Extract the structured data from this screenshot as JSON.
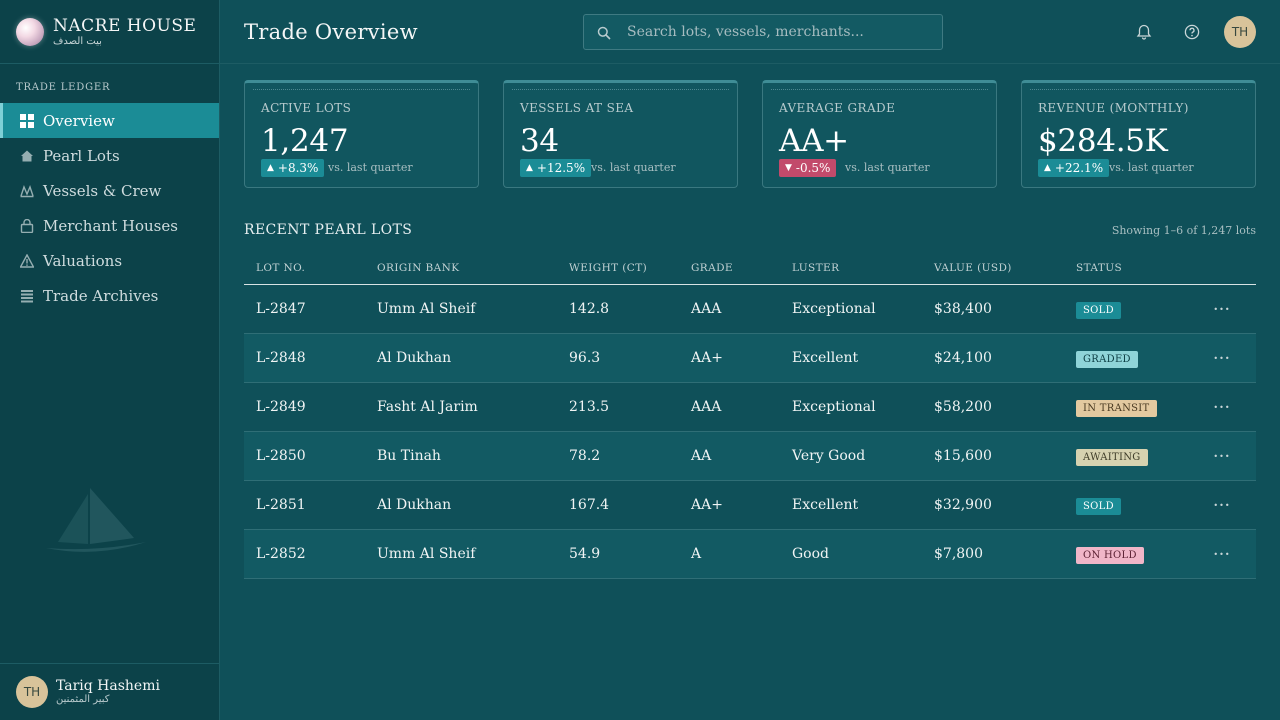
{
  "brand": {
    "name": "NACRE HOUSE",
    "subtitle": "بيت الصدف"
  },
  "sidebar": {
    "section_label": "TRADE LEDGER",
    "items": [
      {
        "label": "Overview",
        "icon": "grid-icon",
        "active": true
      },
      {
        "label": "Pearl Lots",
        "icon": "home-icon",
        "active": false
      },
      {
        "label": "Vessels & Crew",
        "icon": "wave-icon",
        "active": false
      },
      {
        "label": "Merchant Houses",
        "icon": "lock-icon",
        "active": false
      },
      {
        "label": "Valuations",
        "icon": "warning-icon",
        "active": false
      },
      {
        "label": "Trade Archives",
        "icon": "list-icon",
        "active": false
      }
    ]
  },
  "user": {
    "initials": "TH",
    "name": "Tariq Hashemi",
    "subtitle": "كبير المثمنين"
  },
  "header": {
    "title": "Trade Overview",
    "search_placeholder": "Search lots, vessels, merchants...",
    "avatar_initials": "TH"
  },
  "stats": [
    {
      "label": "ACTIVE LOTS",
      "value": "1,247",
      "delta": "+8.3%",
      "direction": "up",
      "note": "vs. last quarter"
    },
    {
      "label": "VESSELS AT SEA",
      "value": "34",
      "delta": "+12.5%",
      "direction": "up",
      "note": "vs. last quarter"
    },
    {
      "label": "AVERAGE GRADE",
      "value": "AA+",
      "delta": "-0.5%",
      "direction": "down",
      "note": "vs. last quarter"
    },
    {
      "label": "REVENUE (MONTHLY)",
      "value": "$284.5K",
      "delta": "+22.1%",
      "direction": "up",
      "note": "vs. last quarter"
    }
  ],
  "table": {
    "title": "RECENT PEARL LOTS",
    "meta": "Showing 1–6 of 1,247 lots",
    "columns": [
      "LOT NO.",
      "ORIGIN BANK",
      "WEIGHT (CT)",
      "GRADE",
      "LUSTER",
      "VALUE (USD)",
      "STATUS"
    ],
    "rows": [
      {
        "lot": "L-2847",
        "origin": "Umm Al Sheif",
        "weight": "142.8",
        "grade": "AAA",
        "luster": "Exceptional",
        "value": "$38,400",
        "status": "SOLD"
      },
      {
        "lot": "L-2848",
        "origin": "Al Dukhan",
        "weight": "96.3",
        "grade": "AA+",
        "luster": "Excellent",
        "value": "$24,100",
        "status": "GRADED"
      },
      {
        "lot": "L-2849",
        "origin": "Fasht Al Jarim",
        "weight": "213.5",
        "grade": "AAA",
        "luster": "Exceptional",
        "value": "$58,200",
        "status": "IN TRANSIT"
      },
      {
        "lot": "L-2850",
        "origin": "Bu Tinah",
        "weight": "78.2",
        "grade": "AA",
        "luster": "Very Good",
        "value": "$15,600",
        "status": "AWAITING"
      },
      {
        "lot": "L-2851",
        "origin": "Al Dukhan",
        "weight": "167.4",
        "grade": "AA+",
        "luster": "Excellent",
        "value": "$32,900",
        "status": "SOLD"
      },
      {
        "lot": "L-2852",
        "origin": "Umm Al Sheif",
        "weight": "54.9",
        "grade": "A",
        "luster": "Good",
        "value": "$7,800",
        "status": "ON HOLD"
      }
    ]
  },
  "status_colors": {
    "SOLD": {
      "bg": "#1b8c96",
      "fg": "#ffffff"
    },
    "GRADED": {
      "bg": "#8fd4d8",
      "fg": "#0c3d43"
    },
    "IN TRANSIT": {
      "bg": "#e3c9a0",
      "fg": "#4a3a22"
    },
    "AWAITING": {
      "bg": "#d6d2b0",
      "fg": "#3e3c28"
    },
    "ON HOLD": {
      "bg": "#f0b6c8",
      "fg": "#5c2234"
    }
  }
}
